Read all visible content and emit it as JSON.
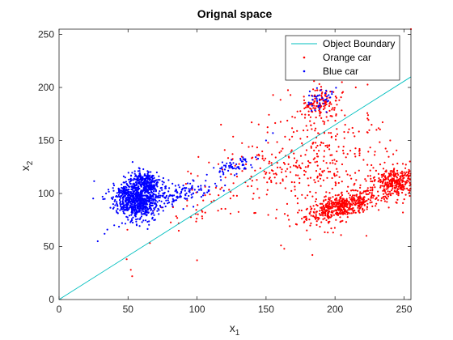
{
  "chart_data": {
    "type": "scatter",
    "title": "Orignal space",
    "xlabel": {
      "base": "x",
      "sub": "1"
    },
    "ylabel": {
      "base": "x",
      "sub": "2"
    },
    "xlim": [
      0,
      255
    ],
    "ylim": [
      0,
      255
    ],
    "xticks": [
      0,
      50,
      100,
      150,
      200,
      250
    ],
    "yticks": [
      0,
      50,
      100,
      150,
      200,
      250
    ],
    "grid": false,
    "legend_position": "top-right",
    "boundary": {
      "name": "Object Boundary",
      "color": "#00bfbf",
      "points": [
        [
          0,
          0
        ],
        [
          255,
          210
        ]
      ]
    },
    "series": [
      {
        "name": "Orange car",
        "color": "#ff0000",
        "clusters": [
          {
            "cx": 205,
            "cy": 88,
            "sx": 14,
            "sy": 5,
            "n": 500,
            "rot": 0.35
          },
          {
            "cx": 243,
            "cy": 110,
            "sx": 9,
            "sy": 7,
            "n": 350,
            "rot": 0.4
          },
          {
            "cx": 190,
            "cy": 185,
            "sx": 8,
            "sy": 6,
            "n": 120,
            "rot": 0.9
          },
          {
            "cx": 195,
            "cy": 130,
            "sx": 25,
            "sy": 28,
            "n": 300,
            "rot": 0
          },
          {
            "cx": 150,
            "cy": 120,
            "sx": 22,
            "sy": 18,
            "n": 120,
            "rot": 0
          },
          {
            "cx": 100,
            "cy": 88,
            "sx": 18,
            "sy": 8,
            "n": 40,
            "rot": 0.6
          }
        ],
        "points": [
          [
            255,
            255
          ],
          [
            49,
            38
          ],
          [
            52,
            28
          ],
          [
            53,
            22
          ],
          [
            100,
            37
          ],
          [
            230,
            160
          ],
          [
            240,
            150
          ],
          [
            215,
            200
          ],
          [
            205,
            205
          ]
        ]
      },
      {
        "name": "Blue car",
        "color": "#0000ff",
        "clusters": [
          {
            "cx": 55,
            "cy": 93,
            "sx": 7,
            "sy": 9,
            "n": 700,
            "rot": 0.6
          },
          {
            "cx": 62,
            "cy": 110,
            "sx": 5,
            "sy": 6,
            "n": 300,
            "rot": 0.5
          },
          {
            "cx": 85,
            "cy": 100,
            "sx": 14,
            "sy": 5,
            "n": 150,
            "rot": 0.25
          },
          {
            "cx": 125,
            "cy": 125,
            "sx": 8,
            "sy": 4,
            "n": 60,
            "rot": 0.5
          },
          {
            "cx": 190,
            "cy": 190,
            "sx": 6,
            "sy": 5,
            "n": 40,
            "rot": 0.8
          }
        ],
        "points": [
          [
            28,
            55
          ],
          [
            33,
            62
          ],
          [
            40,
            70
          ],
          [
            35,
            66
          ],
          [
            155,
            157
          ],
          [
            150,
            150
          ],
          [
            183,
            178
          ]
        ]
      }
    ]
  }
}
